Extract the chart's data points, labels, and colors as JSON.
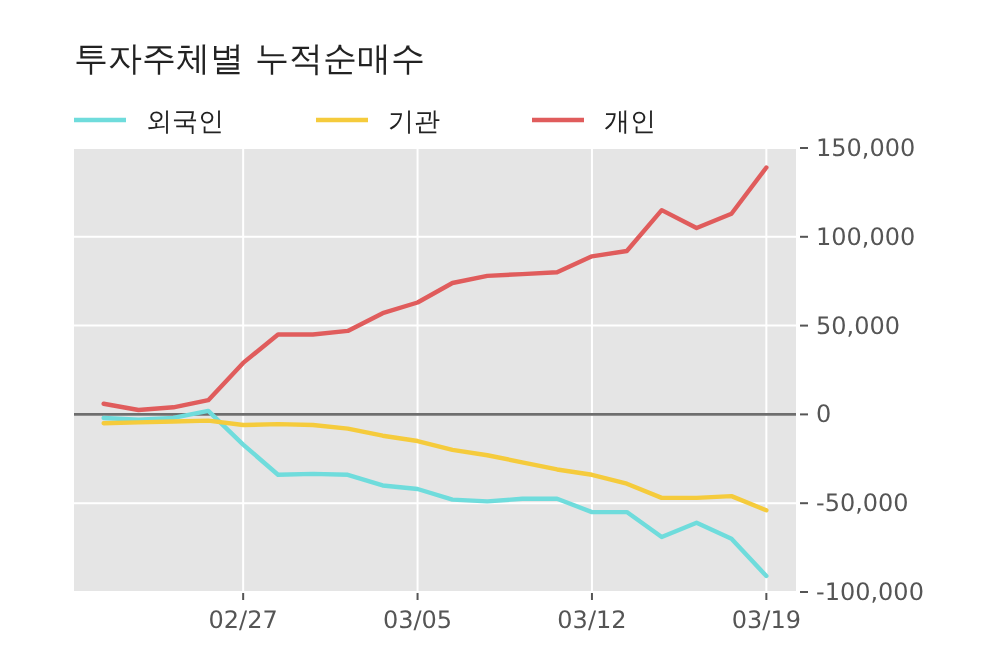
{
  "chart_data": {
    "type": "line",
    "title": "투자주체별 누적순매수",
    "categories": [
      null,
      null,
      null,
      null,
      "02/27",
      null,
      null,
      null,
      null,
      "03/05",
      null,
      null,
      null,
      null,
      "03/12",
      null,
      null,
      null,
      null,
      "03/19"
    ],
    "series": [
      {
        "name": "외국인",
        "color": "#6fdcdc",
        "values": [
          -2000,
          -3000,
          -2000,
          2000,
          -17000,
          -34000,
          -33500,
          -34000,
          -40000,
          -42000,
          -48000,
          -49000,
          -47500,
          -47500,
          -55000,
          -55000,
          -69000,
          -61000,
          -70000,
          -91000
        ]
      },
      {
        "name": "기관",
        "color": "#f5cb3c",
        "values": [
          -5000,
          -4500,
          -4000,
          -3500,
          -6000,
          -5500,
          -6000,
          -8000,
          -12000,
          -15000,
          -20000,
          -23000,
          -27000,
          -31000,
          -34000,
          -39000,
          -47000,
          -47000,
          -46000,
          -54000
        ]
      },
      {
        "name": "개인",
        "color": "#e05c5c",
        "values": [
          6000,
          2500,
          4000,
          8000,
          29000,
          45000,
          45000,
          47000,
          57000,
          63000,
          74000,
          78000,
          79000,
          80000,
          89000,
          92000,
          115000,
          105000,
          113000,
          139000
        ]
      }
    ],
    "ylim": [
      -100000,
      150000
    ],
    "yticks": [
      {
        "value": -100000,
        "label": "-100,000"
      },
      {
        "value": -50000,
        "label": "-50,000"
      },
      {
        "value": 0,
        "label": "0"
      },
      {
        "value": 50000,
        "label": "50,000"
      },
      {
        "value": 100000,
        "label": "100,000"
      },
      {
        "value": 150000,
        "label": "150,000"
      }
    ],
    "ref_lines": [
      {
        "axis": "y",
        "value": 0,
        "color": "#6e6e6e"
      }
    ],
    "grid": true,
    "legend": "top left",
    "line_style": "solid",
    "marker": "none"
  }
}
